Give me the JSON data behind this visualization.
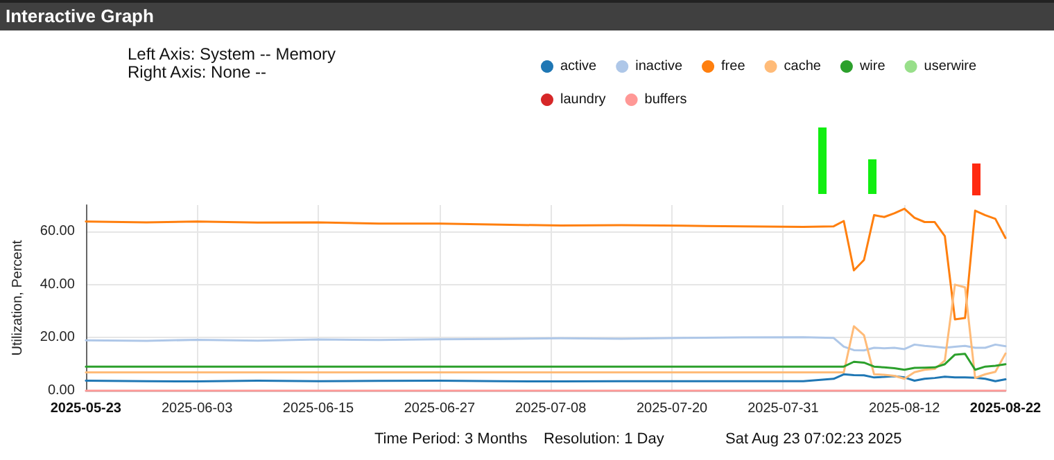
{
  "chart_data": {
    "type": "line",
    "title": "Interactive Graph",
    "subtitle": "Left Axis: System -- Memory",
    "annotations": [
      "Right Axis: None --",
      "Time Period: 3 Months",
      "Resolution: 1 Day",
      "Sat Aug 23 07:02:23 2025"
    ],
    "ylabel": "Utilization, Percent",
    "x": [
      "2025-05-23",
      "2025-05-29",
      "2025-06-03",
      "2025-06-09",
      "2025-06-15",
      "2025-06-21",
      "2025-06-27",
      "2025-07-03",
      "2025-07-09",
      "2025-07-15",
      "2025-07-21",
      "2025-07-27",
      "2025-08-02",
      "2025-08-05",
      "2025-08-06",
      "2025-08-07",
      "2025-08-08",
      "2025-08-09",
      "2025-08-10",
      "2025-08-11",
      "2025-08-12",
      "2025-08-13",
      "2025-08-14",
      "2025-08-15",
      "2025-08-16",
      "2025-08-17",
      "2025-08-18",
      "2025-08-19",
      "2025-08-20",
      "2025-08-21",
      "2025-08-22"
    ],
    "series": [
      {
        "name": "active",
        "color": "#1f77b4",
        "values": [
          3.8,
          3.6,
          3.5,
          3.8,
          3.6,
          3.7,
          3.8,
          3.6,
          3.5,
          3.6,
          3.6,
          3.6,
          3.6,
          4.5,
          6.2,
          5.9,
          5.8,
          5.0,
          5.2,
          5.5,
          5.0,
          3.8,
          4.5,
          4.8,
          5.3,
          5.0,
          5.0,
          4.9,
          4.5,
          3.6,
          4.3
        ]
      },
      {
        "name": "inactive",
        "color": "#aec7e8",
        "values": [
          19.0,
          18.8,
          19.2,
          18.9,
          19.3,
          19.1,
          19.4,
          19.5,
          19.8,
          19.6,
          19.9,
          20.1,
          20.2,
          19.9,
          16.6,
          15.3,
          15.2,
          16.2,
          16.0,
          16.2,
          15.7,
          17.4,
          16.9,
          16.6,
          16.2,
          16.6,
          16.9,
          16.2,
          16.2,
          17.4,
          16.8
        ]
      },
      {
        "name": "free",
        "color": "#ff7f0e",
        "values": [
          63.8,
          63.5,
          63.8,
          63.4,
          63.5,
          63.0,
          63.0,
          62.6,
          62.3,
          62.4,
          62.2,
          62.0,
          61.8,
          62.0,
          64.0,
          45.4,
          49.3,
          66.2,
          65.5,
          66.9,
          68.6,
          65.2,
          63.6,
          63.6,
          58.3,
          26.9,
          27.4,
          67.9,
          66.2,
          64.8,
          57.6
        ]
      },
      {
        "name": "cache",
        "color": "#ffbb78",
        "values": [
          6.9,
          6.9,
          6.9,
          6.9,
          6.9,
          6.9,
          6.9,
          6.9,
          6.9,
          6.9,
          6.9,
          6.9,
          6.9,
          6.9,
          6.9,
          24.3,
          20.9,
          6.2,
          6.0,
          5.6,
          4.5,
          7.0,
          7.9,
          8.2,
          11.4,
          40.0,
          39.0,
          4.8,
          6.2,
          7.1,
          14.0
        ]
      },
      {
        "name": "wire",
        "color": "#2ca02c",
        "values": [
          9.1,
          9.1,
          9.1,
          9.1,
          9.1,
          9.1,
          9.1,
          9.1,
          9.1,
          9.1,
          9.1,
          9.1,
          9.1,
          9.1,
          9.1,
          10.9,
          10.6,
          9.1,
          8.8,
          8.5,
          7.9,
          8.6,
          8.7,
          8.8,
          10.0,
          13.6,
          13.9,
          7.9,
          9.1,
          9.4,
          10.0
        ]
      },
      {
        "name": "userwire",
        "color": "#98df8a",
        "values": [
          null,
          null,
          null,
          null,
          null,
          null,
          null,
          null,
          null,
          null,
          null,
          null,
          null,
          null,
          null,
          null,
          null,
          null,
          null,
          null,
          null,
          null,
          null,
          null,
          null,
          null,
          null,
          null,
          null,
          null,
          null
        ]
      },
      {
        "name": "laundry",
        "color": "#d62728",
        "values": [
          null,
          null,
          null,
          null,
          null,
          null,
          null,
          null,
          null,
          null,
          null,
          null,
          null,
          null,
          null,
          null,
          null,
          null,
          null,
          null,
          null,
          null,
          null,
          null,
          null,
          null,
          null,
          null,
          null,
          null,
          null
        ]
      },
      {
        "name": "buffers",
        "color": "#ff9896",
        "values": [
          0,
          0,
          0,
          0,
          0,
          0,
          0,
          0,
          0,
          0,
          0,
          0,
          0,
          0,
          0,
          0,
          0,
          0,
          0,
          0,
          0,
          0,
          0,
          0,
          0,
          0,
          0,
          0,
          0,
          0,
          0
        ]
      }
    ],
    "xlim": [
      "2025-05-23",
      "2025-08-22"
    ],
    "xticks": [
      "2025-05-23",
      "2025-06-03",
      "2025-06-15",
      "2025-06-27",
      "2025-07-08",
      "2025-07-20",
      "2025-07-31",
      "2025-08-12",
      "2025-08-22"
    ],
    "ylim": [
      0,
      70
    ],
    "yticks": [
      {
        "value": 0,
        "label": "0.00"
      },
      {
        "value": 20,
        "label": "20.00"
      },
      {
        "value": 40,
        "label": "40.00"
      },
      {
        "value": 60,
        "label": "60.00"
      }
    ],
    "grid": true,
    "legend": "top right",
    "marker": "none",
    "line_style": "solid"
  }
}
